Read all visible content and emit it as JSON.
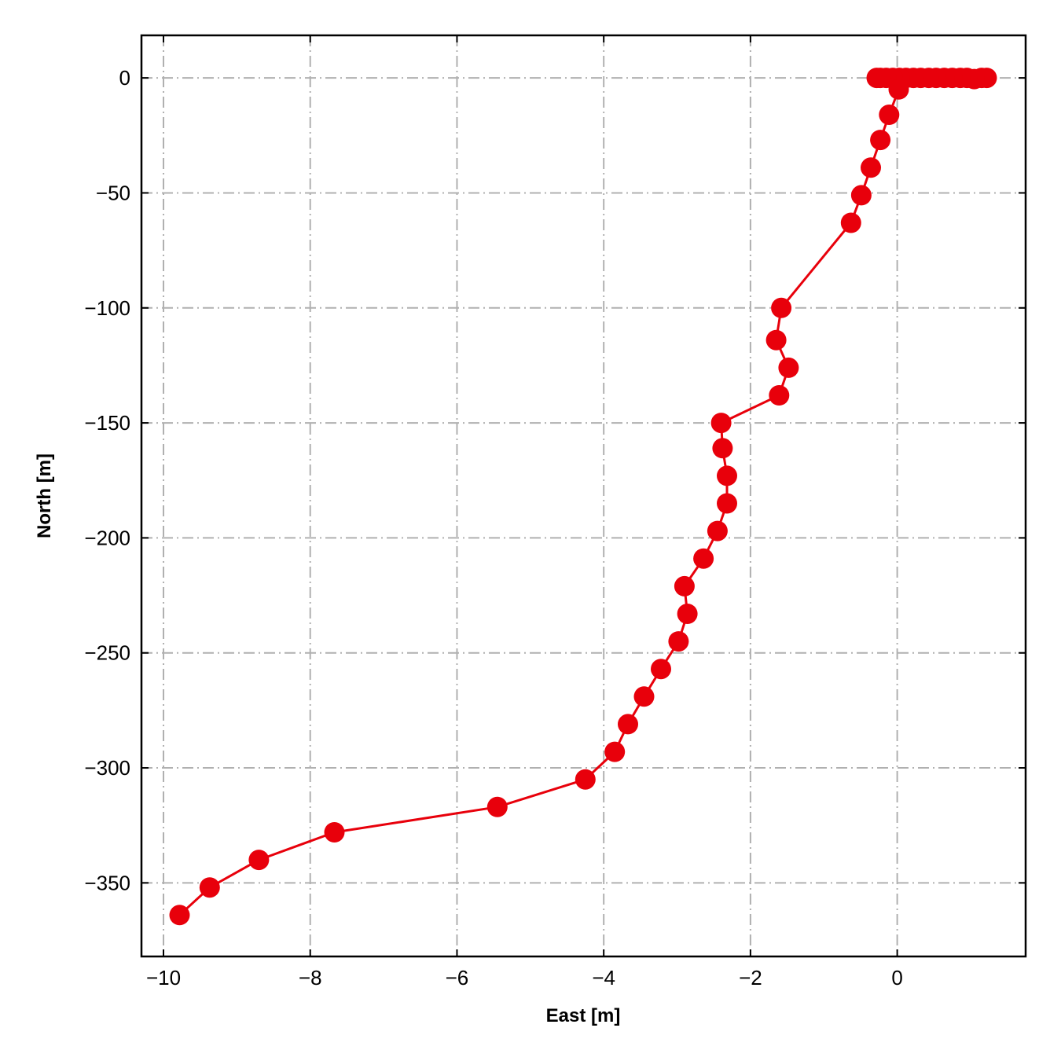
{
  "chart_data": {
    "type": "line",
    "title": "",
    "xlabel": "East [m]",
    "ylabel": "North [m]",
    "xlim": [
      -10.3,
      1.75
    ],
    "ylim": [
      -382,
      18.5
    ],
    "xticks": [
      -10,
      -8,
      -6,
      -4,
      -2,
      0
    ],
    "yticks": [
      0,
      -50,
      -100,
      -150,
      -200,
      -250,
      -300,
      -350
    ],
    "grid": true,
    "colors": {
      "series": "#e8000b",
      "grid": "#b0b0b0"
    },
    "series": [
      {
        "marker": "circle",
        "x": [
          1.22,
          1.15,
          1.05,
          0.95,
          0.86,
          0.75,
          0.64,
          0.53,
          0.43,
          0.32,
          0.22,
          0.12,
          0.03,
          -0.06,
          -0.15,
          -0.23,
          -0.28,
          0.02,
          -0.11,
          -0.23,
          -0.36,
          -0.49,
          -0.63,
          -1.58,
          -1.65,
          -1.48,
          -1.61,
          -2.4,
          -2.38,
          -2.32,
          -2.32,
          -2.45,
          -2.64,
          -2.9,
          -2.86,
          -2.98,
          -3.22,
          -3.45,
          -3.67,
          -3.85,
          -4.25,
          -5.45,
          -7.67,
          -8.7,
          -9.37,
          -9.78
        ],
        "y": [
          0,
          0,
          -0.5,
          0,
          0,
          0,
          0,
          0,
          0,
          0,
          0,
          0,
          0,
          0,
          0,
          0,
          0,
          -5,
          -16,
          -27,
          -39,
          -51,
          -63,
          -100,
          -114,
          -126,
          -138,
          -150,
          -161,
          -173,
          -185,
          -197,
          -209,
          -221,
          -233,
          -245,
          -257,
          -269,
          -281,
          -293,
          -305,
          -317,
          -328,
          -340,
          -352,
          -364
        ]
      }
    ]
  }
}
